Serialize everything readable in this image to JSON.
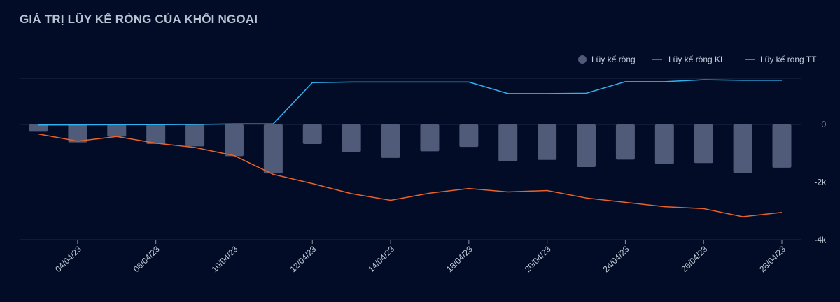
{
  "chart_data": {
    "type": "bar",
    "title": "GIÁ TRỊ LŨY KẾ RÒNG CỦA KHỐI NGOẠI",
    "categories": [
      "",
      "04/04/23",
      "",
      "06/04/23",
      "",
      "10/04/23",
      "",
      "12/04/23",
      "",
      "14/04/23",
      "",
      "18/04/23",
      "",
      "20/04/23",
      "",
      "24/04/23",
      "",
      "26/04/23",
      "",
      "28/04/23"
    ],
    "series": [
      {
        "name": "Lũy kế ròng",
        "type": "bar",
        "color": "#4f5b78",
        "values": [
          -250,
          -620,
          -420,
          -680,
          -760,
          -1100,
          -1700,
          -680,
          -950,
          -1160,
          -930,
          -780,
          -1280,
          -1230,
          -1480,
          -1220,
          -1370,
          -1340,
          -1680,
          -1500
        ]
      },
      {
        "name": "Lũy kế ròng KL",
        "type": "line",
        "color": "#e8622c",
        "values": [
          -330,
          -580,
          -420,
          -650,
          -800,
          -1080,
          -1730,
          -2050,
          -2400,
          -2630,
          -2380,
          -2220,
          -2340,
          -2290,
          -2550,
          -2700,
          -2850,
          -2920,
          -3200,
          -3050
        ]
      },
      {
        "name": "Lũy kế ròng TT",
        "type": "line",
        "color": "#2fb3ef",
        "values": [
          -20,
          -15,
          -10,
          -5,
          0,
          20,
          20,
          1450,
          1470,
          1470,
          1470,
          1470,
          1070,
          1070,
          1080,
          1480,
          1480,
          1550,
          1530,
          1530
        ]
      }
    ],
    "yticks": [
      0,
      -2000,
      -4000
    ],
    "ytick_labels": [
      "0",
      "-2k",
      "-4k"
    ],
    "ylim": [
      -4000,
      1600
    ],
    "xlabel": "",
    "ylabel": "",
    "legend_position": "top-right",
    "grid": true
  }
}
